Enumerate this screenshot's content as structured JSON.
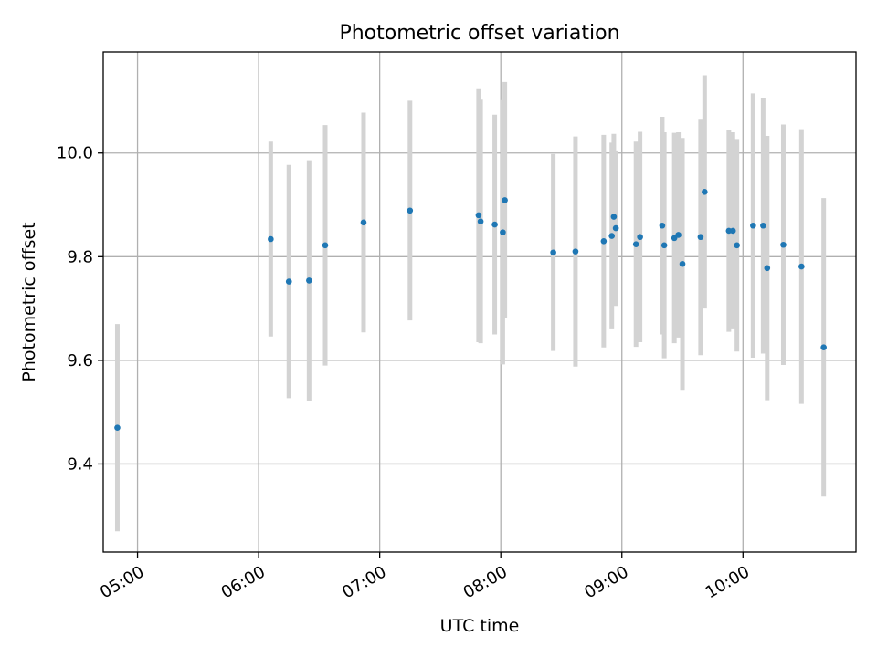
{
  "chart_data": {
    "type": "scatter",
    "title": "Photometric offset variation",
    "xlabel": "UTC time",
    "ylabel": "Photometric offset",
    "x_unit": "time",
    "xlim": [
      "04:43",
      "10:56"
    ],
    "ylim": [
      9.23,
      10.195
    ],
    "x_ticks": [
      "05:00",
      "06:00",
      "07:00",
      "08:00",
      "09:00",
      "10:00"
    ],
    "y_ticks": [
      "9.4",
      "9.6",
      "9.8",
      "10.0"
    ],
    "grid": true,
    "point_color": "#1f77b4",
    "errorbar_color": "#d3d3d3",
    "points": [
      {
        "t": "04:50",
        "y": 9.47,
        "err": 0.2
      },
      {
        "t": "06:06",
        "y": 9.834,
        "err": 0.188
      },
      {
        "t": "06:15",
        "y": 9.752,
        "err": 0.225
      },
      {
        "t": "06:25",
        "y": 9.754,
        "err": 0.232
      },
      {
        "t": "06:33",
        "y": 9.822,
        "err": 0.232
      },
      {
        "t": "06:52",
        "y": 9.866,
        "err": 0.212
      },
      {
        "t": "07:15",
        "y": 9.889,
        "err": 0.212
      },
      {
        "t": "07:49",
        "y": 9.88,
        "err": 0.245
      },
      {
        "t": "07:50",
        "y": 9.868,
        "err": 0.235
      },
      {
        "t": "07:57",
        "y": 9.862,
        "err": 0.212
      },
      {
        "t": "08:01",
        "y": 9.847,
        "err": 0.255
      },
      {
        "t": "08:02",
        "y": 9.909,
        "err": 0.228
      },
      {
        "t": "08:26",
        "y": 9.808,
        "err": 0.19
      },
      {
        "t": "08:37",
        "y": 9.81,
        "err": 0.222
      },
      {
        "t": "08:51",
        "y": 9.83,
        "err": 0.205
      },
      {
        "t": "08:55",
        "y": 9.84,
        "err": 0.18
      },
      {
        "t": "08:56",
        "y": 9.877,
        "err": 0.16
      },
      {
        "t": "08:57",
        "y": 9.855,
        "err": 0.15
      },
      {
        "t": "09:07",
        "y": 9.824,
        "err": 0.198
      },
      {
        "t": "09:09",
        "y": 9.838,
        "err": 0.203
      },
      {
        "t": "09:20",
        "y": 9.86,
        "err": 0.21
      },
      {
        "t": "09:21",
        "y": 9.822,
        "err": 0.218
      },
      {
        "t": "09:26",
        "y": 9.836,
        "err": 0.203
      },
      {
        "t": "09:28",
        "y": 9.842,
        "err": 0.198
      },
      {
        "t": "09:30",
        "y": 9.786,
        "err": 0.243
      },
      {
        "t": "09:39",
        "y": 9.838,
        "err": 0.228
      },
      {
        "t": "09:41",
        "y": 9.925,
        "err": 0.225
      },
      {
        "t": "09:53",
        "y": 9.85,
        "err": 0.195
      },
      {
        "t": "09:55",
        "y": 9.85,
        "err": 0.19
      },
      {
        "t": "09:57",
        "y": 9.822,
        "err": 0.205
      },
      {
        "t": "10:05",
        "y": 9.86,
        "err": 0.255
      },
      {
        "t": "10:10",
        "y": 9.86,
        "err": 0.247
      },
      {
        "t": "10:12",
        "y": 9.778,
        "err": 0.255
      },
      {
        "t": "10:20",
        "y": 9.823,
        "err": 0.232
      },
      {
        "t": "10:29",
        "y": 9.781,
        "err": 0.265
      },
      {
        "t": "10:40",
        "y": 9.625,
        "err": 0.288
      }
    ]
  }
}
